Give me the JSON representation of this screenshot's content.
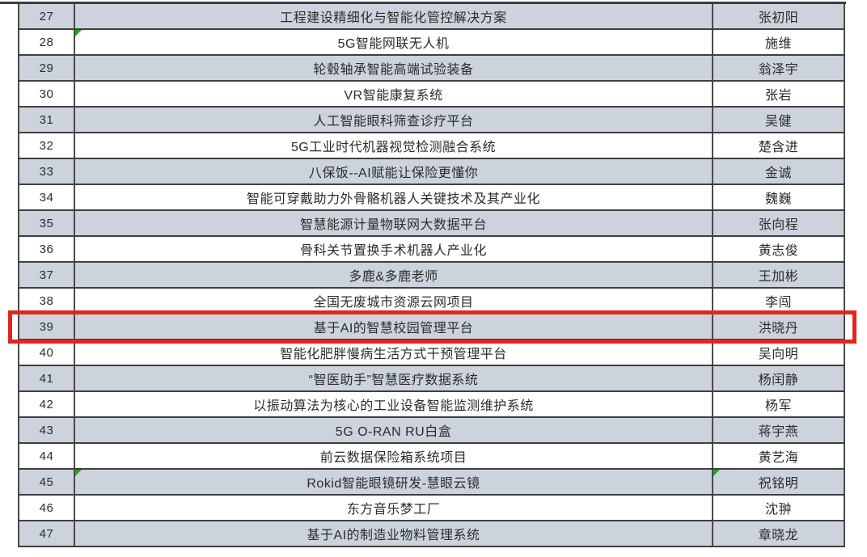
{
  "table": {
    "rows": [
      {
        "num": "27",
        "project": "工程建设精细化与智能化管控解决方案",
        "leader": "张初阳"
      },
      {
        "num": "28",
        "project": "5G智能网联无人机",
        "leader": "施维"
      },
      {
        "num": "29",
        "project": "轮毂轴承智能高端试验装备",
        "leader": "翁泽宇"
      },
      {
        "num": "30",
        "project": "VR智能康复系统",
        "leader": "张岩"
      },
      {
        "num": "31",
        "project": "人工智能眼科筛查诊疗平台",
        "leader": "吴健"
      },
      {
        "num": "32",
        "project": "5G工业时代机器视觉检测融合系统",
        "leader": "楚含进"
      },
      {
        "num": "33",
        "project": "八保饭--AI赋能让保险更懂你",
        "leader": "金诚"
      },
      {
        "num": "34",
        "project": "智能可穿戴助力外骨骼机器人关键技术及其产业化",
        "leader": "魏巍"
      },
      {
        "num": "35",
        "project": "智慧能源计量物联网大数据平台",
        "leader": "张向程"
      },
      {
        "num": "36",
        "project": "骨科关节置换手术机器人产业化",
        "leader": "黄志俊"
      },
      {
        "num": "37",
        "project": "多鹿&多鹿老师",
        "leader": "王加彬"
      },
      {
        "num": "38",
        "project": "全国无废城市资源云网项目",
        "leader": "李闯"
      },
      {
        "num": "39",
        "project": "基于AI的智慧校园管理平台",
        "leader": "洪晓丹"
      },
      {
        "num": "40",
        "project": "智能化肥胖慢病生活方式干预管理平台",
        "leader": "吴向明"
      },
      {
        "num": "41",
        "project": "“智医助手”智慧医疗数据系统",
        "leader": "杨闰静"
      },
      {
        "num": "42",
        "project": "以振动算法为核心的工业设备智能监测维护系统",
        "leader": "杨军"
      },
      {
        "num": "43",
        "project": "5G O-RAN RU白盒",
        "leader": "蒋宇燕"
      },
      {
        "num": "44",
        "project": "前云数据保险箱系统项目",
        "leader": "黄艺海"
      },
      {
        "num": "45",
        "project": "Rokid智能眼镜研发-慧眼云镜",
        "leader": "祝铭明"
      },
      {
        "num": "46",
        "project": "东方音乐梦工厂",
        "leader": "沈翀"
      },
      {
        "num": "47",
        "project": "基于AI的制造业物料管理系统",
        "leader": "章晓龙"
      }
    ]
  },
  "highlight": {
    "row_num": "39",
    "border_color": "#e2251f"
  },
  "flags": {
    "green_corner_cells": [
      "row-28-project",
      "row-45-project",
      "row-45-leader"
    ],
    "color": "#1ea71e"
  },
  "colors": {
    "shaded_row": "#ccd3dd",
    "row_border": "#3f3f3f",
    "text": "#2b2b2b"
  }
}
